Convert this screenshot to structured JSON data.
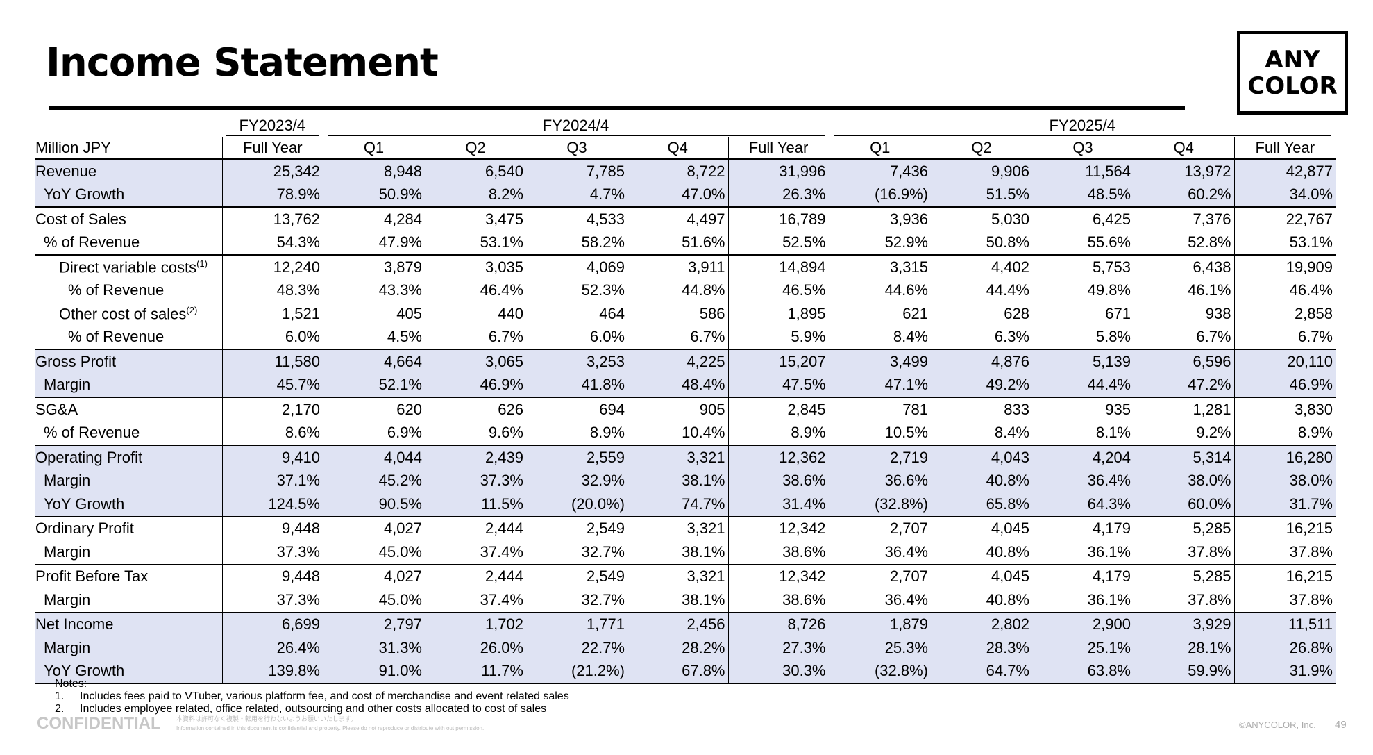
{
  "header": {
    "title": "Income Statement",
    "logo": [
      "ANY",
      "COLOR"
    ]
  },
  "table": {
    "unit_label": "Million JPY",
    "groups": [
      "FY2023/4",
      "FY2024/4",
      "FY2025/4"
    ],
    "columns": [
      "Full Year",
      "Q1",
      "Q2",
      "Q3",
      "Q4",
      "Full Year",
      "Q1",
      "Q2",
      "Q3",
      "Q4",
      "Full Year"
    ],
    "rows": [
      {
        "label": "Revenue",
        "values": [
          "25,342",
          "8,948",
          "6,540",
          "7,785",
          "8,722",
          "31,996",
          "7,436",
          "9,906",
          "11,564",
          "13,972",
          "42,877"
        ]
      },
      {
        "label": "YoY Growth",
        "values": [
          "78.9%",
          "50.9%",
          "8.2%",
          "4.7%",
          "47.0%",
          "26.3%",
          "(16.9%)",
          "51.5%",
          "48.5%",
          "60.2%",
          "34.0%"
        ]
      },
      {
        "label": "Cost of Sales",
        "values": [
          "13,762",
          "4,284",
          "3,475",
          "4,533",
          "4,497",
          "16,789",
          "3,936",
          "5,030",
          "6,425",
          "7,376",
          "22,767"
        ]
      },
      {
        "label": "% of Revenue",
        "values": [
          "54.3%",
          "47.9%",
          "53.1%",
          "58.2%",
          "51.6%",
          "52.5%",
          "52.9%",
          "50.8%",
          "55.6%",
          "52.8%",
          "53.1%"
        ]
      },
      {
        "label": "Direct variable costs",
        "note": "(1)",
        "values": [
          "12,240",
          "3,879",
          "3,035",
          "4,069",
          "3,911",
          "14,894",
          "3,315",
          "4,402",
          "5,753",
          "6,438",
          "19,909"
        ]
      },
      {
        "label": "% of Revenue",
        "values": [
          "48.3%",
          "43.3%",
          "46.4%",
          "52.3%",
          "44.8%",
          "46.5%",
          "44.6%",
          "44.4%",
          "49.8%",
          "46.1%",
          "46.4%"
        ]
      },
      {
        "label": "Other cost of sales",
        "note": "(2)",
        "values": [
          "1,521",
          "405",
          "440",
          "464",
          "586",
          "1,895",
          "621",
          "628",
          "671",
          "938",
          "2,858"
        ]
      },
      {
        "label": "% of Revenue",
        "values": [
          "6.0%",
          "4.5%",
          "6.7%",
          "6.0%",
          "6.7%",
          "5.9%",
          "8.4%",
          "6.3%",
          "5.8%",
          "6.7%",
          "6.7%"
        ]
      },
      {
        "label": "Gross Profit",
        "values": [
          "11,580",
          "4,664",
          "3,065",
          "3,253",
          "4,225",
          "15,207",
          "3,499",
          "4,876",
          "5,139",
          "6,596",
          "20,110"
        ]
      },
      {
        "label": "Margin",
        "values": [
          "45.7%",
          "52.1%",
          "46.9%",
          "41.8%",
          "48.4%",
          "47.5%",
          "47.1%",
          "49.2%",
          "44.4%",
          "47.2%",
          "46.9%"
        ]
      },
      {
        "label": "SG&A",
        "values": [
          "2,170",
          "620",
          "626",
          "694",
          "905",
          "2,845",
          "781",
          "833",
          "935",
          "1,281",
          "3,830"
        ]
      },
      {
        "label": "% of Revenue",
        "values": [
          "8.6%",
          "6.9%",
          "9.6%",
          "8.9%",
          "10.4%",
          "8.9%",
          "10.5%",
          "8.4%",
          "8.1%",
          "9.2%",
          "8.9%"
        ]
      },
      {
        "label": "Operating Profit",
        "values": [
          "9,410",
          "4,044",
          "2,439",
          "2,559",
          "3,321",
          "12,362",
          "2,719",
          "4,043",
          "4,204",
          "5,314",
          "16,280"
        ]
      },
      {
        "label": "Margin",
        "values": [
          "37.1%",
          "45.2%",
          "37.3%",
          "32.9%",
          "38.1%",
          "38.6%",
          "36.6%",
          "40.8%",
          "36.4%",
          "38.0%",
          "38.0%"
        ]
      },
      {
        "label": "YoY Growth",
        "values": [
          "124.5%",
          "90.5%",
          "11.5%",
          "(20.0%)",
          "74.7%",
          "31.4%",
          "(32.8%)",
          "65.8%",
          "64.3%",
          "60.0%",
          "31.7%"
        ]
      },
      {
        "label": "Ordinary Profit",
        "values": [
          "9,448",
          "4,027",
          "2,444",
          "2,549",
          "3,321",
          "12,342",
          "2,707",
          "4,045",
          "4,179",
          "5,285",
          "16,215"
        ]
      },
      {
        "label": "Margin",
        "values": [
          "37.3%",
          "45.0%",
          "37.4%",
          "32.7%",
          "38.1%",
          "38.6%",
          "36.4%",
          "40.8%",
          "36.1%",
          "37.8%",
          "37.8%"
        ]
      },
      {
        "label": "Profit Before Tax",
        "values": [
          "9,448",
          "4,027",
          "2,444",
          "2,549",
          "3,321",
          "12,342",
          "2,707",
          "4,045",
          "4,179",
          "5,285",
          "16,215"
        ]
      },
      {
        "label": "Margin",
        "values": [
          "37.3%",
          "45.0%",
          "37.4%",
          "32.7%",
          "38.1%",
          "38.6%",
          "36.4%",
          "40.8%",
          "36.1%",
          "37.8%",
          "37.8%"
        ]
      },
      {
        "label": "Net Income",
        "values": [
          "6,699",
          "2,797",
          "1,702",
          "1,771",
          "2,456",
          "8,726",
          "1,879",
          "2,802",
          "2,900",
          "3,929",
          "11,511"
        ]
      },
      {
        "label": "Margin",
        "values": [
          "26.4%",
          "31.3%",
          "26.0%",
          "22.7%",
          "28.2%",
          "27.3%",
          "25.3%",
          "28.3%",
          "25.1%",
          "28.1%",
          "26.8%"
        ]
      },
      {
        "label": "YoY Growth",
        "values": [
          "139.8%",
          "91.0%",
          "11.7%",
          "(21.2%)",
          "67.8%",
          "30.3%",
          "(32.8%)",
          "64.7%",
          "63.8%",
          "59.9%",
          "31.9%"
        ]
      }
    ]
  },
  "notes": {
    "heading": "Notes:",
    "items": [
      {
        "number": "1.",
        "text": "Includes fees paid to VTuber, various platform fee, and cost of merchandise and event related sales"
      },
      {
        "number": "2.",
        "text": "Includes employee related, office related, outsourcing and other costs allocated to cost of sales"
      }
    ]
  },
  "footer": {
    "confidential": "CONFIDENTIAL",
    "notice_ja": "本資料は許可なく複製・転用を行わないようお願いいたします。",
    "notice_en": "Information contained in this document is confidential and property. Please do not reproduce or distribute with out permission.",
    "copyright": "©ANYCOLOR, Inc.",
    "page": "49"
  }
}
